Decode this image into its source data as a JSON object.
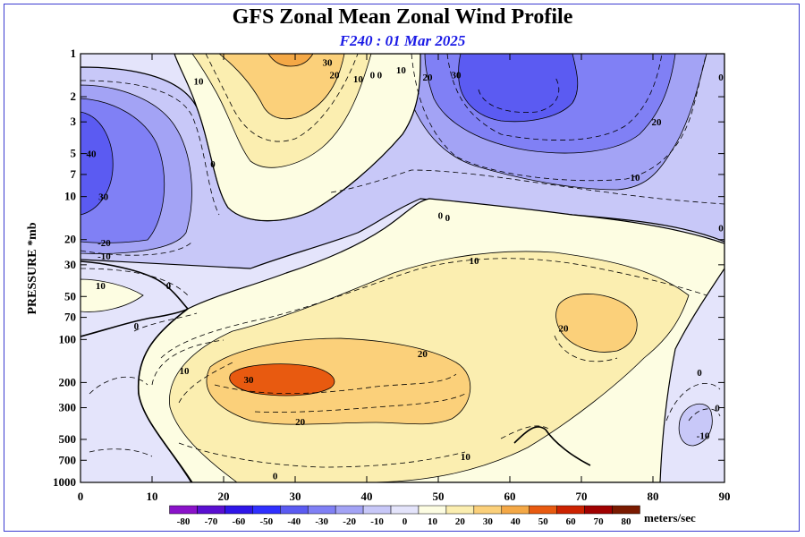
{
  "header": {
    "title": "GFS Zonal Mean Zonal Wind Profile",
    "subtitle": "F240 : 01 Mar 2025"
  },
  "chart_data": {
    "type": "heatmap",
    "title": "GFS Zonal Mean Zonal Wind Profile",
    "subtitle": "F240 : 01 Mar 2025",
    "xlabel": "",
    "ylabel": "PRESSURE *mb",
    "x_ticks": [
      0,
      10,
      20,
      30,
      40,
      50,
      60,
      70,
      80,
      90
    ],
    "xlim": [
      0,
      90
    ],
    "y_ticks": [
      1,
      2,
      3,
      5,
      7,
      10,
      20,
      30,
      50,
      70,
      100,
      200,
      300,
      500,
      700,
      1000
    ],
    "ylim": [
      1,
      1000
    ],
    "y_scale": "log",
    "y_inverted": true,
    "colorbar": {
      "unit_label": "meters/sec",
      "levels": [
        -80,
        -70,
        -60,
        -50,
        -40,
        -30,
        -20,
        -10,
        0,
        10,
        20,
        30,
        40,
        50,
        60,
        70,
        80
      ],
      "colors": [
        "#8a12c9",
        "#5a0fd1",
        "#2f16e8",
        "#3030ff",
        "#5b5bf2",
        "#8080f5",
        "#a3a3f5",
        "#c8c8f8",
        "#e4e4fb",
        "#fdfde2",
        "#fbeeb0",
        "#fbd07a",
        "#f4a846",
        "#e85a10",
        "#cc2200",
        "#a00000",
        "#7a1a00",
        "#8a6a2a"
      ]
    },
    "contour_labels": [
      {
        "text": "30",
        "lat": 34.5,
        "p": 1.15
      },
      {
        "text": "20",
        "lat": 35.5,
        "p": 1.4
      },
      {
        "text": "10",
        "lat": 16.5,
        "p": 1.55
      },
      {
        "text": "10",
        "lat": 38.8,
        "p": 1.5
      },
      {
        "text": "0",
        "lat": 40.8,
        "p": 1.4
      },
      {
        "text": "0",
        "lat": 41.8,
        "p": 1.4
      },
      {
        "text": "10",
        "lat": 44.8,
        "p": 1.3
      },
      {
        "text": "20",
        "lat": 48.5,
        "p": 1.45
      },
      {
        "text": "30",
        "lat": 52.5,
        "p": 1.4
      },
      {
        "text": "0",
        "lat": 89.5,
        "p": 1.45
      },
      {
        "text": "20",
        "lat": 80.5,
        "p": 3.0
      },
      {
        "text": "10",
        "lat": 77.5,
        "p": 7.3
      },
      {
        "text": "40",
        "lat": 1.5,
        "p": 5.0
      },
      {
        "text": "30",
        "lat": 3.2,
        "p": 10.0
      },
      {
        "text": "0",
        "lat": 18.5,
        "p": 5.9
      },
      {
        "text": "-20",
        "lat": 3.3,
        "p": 21.0
      },
      {
        "text": "-10",
        "lat": 3.3,
        "p": 26.0
      },
      {
        "text": "0",
        "lat": 50.3,
        "p": 13.5
      },
      {
        "text": "0",
        "lat": 51.3,
        "p": 14.0
      },
      {
        "text": "0",
        "lat": 89.5,
        "p": 16.5
      },
      {
        "text": "10",
        "lat": 55.0,
        "p": 28.0
      },
      {
        "text": "10",
        "lat": 2.8,
        "p": 42.0
      },
      {
        "text": "0",
        "lat": 12.3,
        "p": 42.0
      },
      {
        "text": "0",
        "lat": 7.8,
        "p": 80.0
      },
      {
        "text": "20",
        "lat": 67.5,
        "p": 83.0
      },
      {
        "text": "20",
        "lat": 47.8,
        "p": 125.0
      },
      {
        "text": "10",
        "lat": 14.5,
        "p": 165.0
      },
      {
        "text": "30",
        "lat": 23.5,
        "p": 190.0
      },
      {
        "text": "0",
        "lat": 86.5,
        "p": 170.0
      },
      {
        "text": "0",
        "lat": 89.0,
        "p": 300.0
      },
      {
        "text": "20",
        "lat": 30.7,
        "p": 375.0
      },
      {
        "text": "-10",
        "lat": 87.0,
        "p": 470.0
      },
      {
        "text": "10",
        "lat": 53.8,
        "p": 660.0
      },
      {
        "text": "0",
        "lat": 27.2,
        "p": 900.0
      }
    ]
  }
}
